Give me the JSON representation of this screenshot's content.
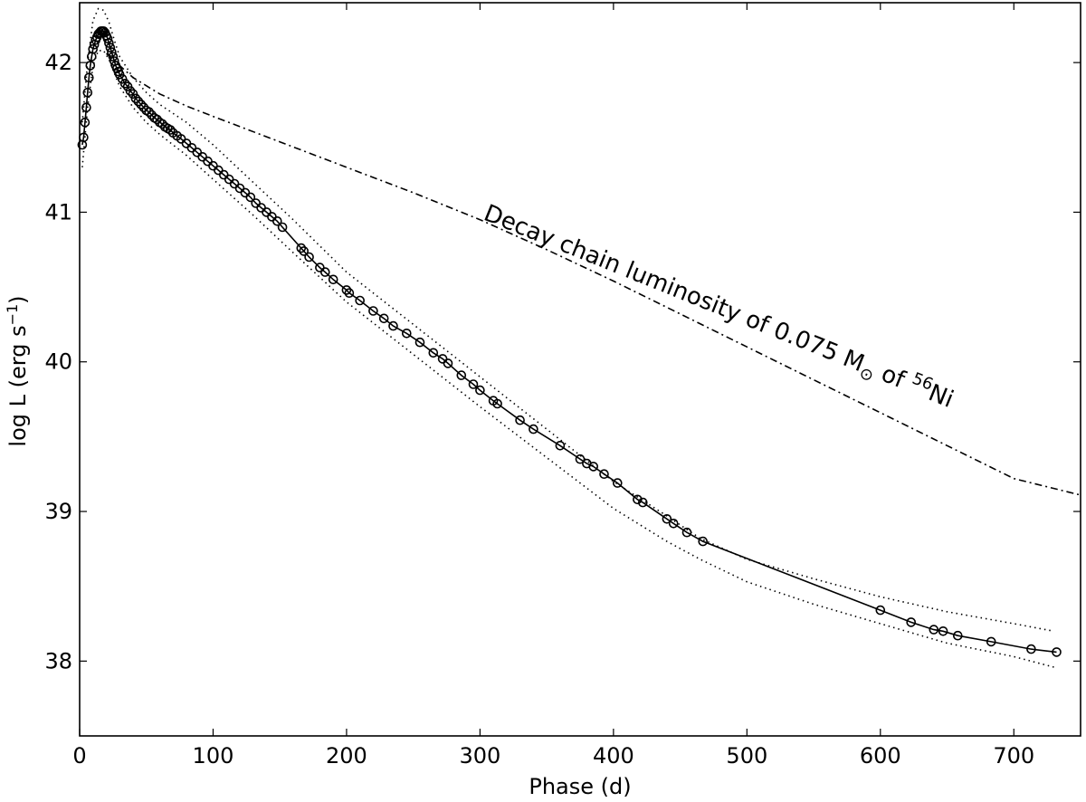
{
  "chart_data": {
    "type": "line",
    "xlabel": "Phase (d)",
    "ylabel_main": "log L (erg s",
    "ylabel_sup": "−1",
    "ylabel_end": ")",
    "xlim": [
      0,
      750
    ],
    "ylim": [
      37.5,
      42.4
    ],
    "xticks": [
      0,
      100,
      200,
      300,
      400,
      500,
      600,
      700
    ],
    "xtick_labels": [
      "0",
      "100",
      "200",
      "300",
      "400",
      "500",
      "600",
      "700"
    ],
    "yticks": [
      38,
      39,
      40,
      41,
      42
    ],
    "ytick_labels": [
      "38",
      "39",
      "40",
      "41",
      "42"
    ],
    "grid": false,
    "annotation": {
      "prefix": "Decay chain luminosity of 0.075 M",
      "sun": "⊙",
      "middle": " of ",
      "sup": "56",
      "suffix": "Ni"
    },
    "series": [
      {
        "style": "line-with-circle-markers",
        "color": "#000000",
        "x": [
          2,
          3,
          4,
          5,
          6,
          7,
          8,
          9,
          10,
          11,
          12,
          13,
          14,
          15,
          16,
          17,
          18,
          19,
          20,
          21,
          22,
          23,
          24,
          25,
          26,
          27,
          28,
          29,
          30,
          32,
          34,
          36,
          38,
          40,
          42,
          44,
          46,
          48,
          50,
          52,
          54,
          56,
          58,
          60,
          62,
          64,
          66,
          68,
          70,
          73,
          76,
          80,
          84,
          88,
          92,
          96,
          100,
          104,
          108,
          112,
          116,
          120,
          124,
          128,
          132,
          136,
          140,
          144,
          148,
          152,
          166,
          168,
          172,
          180,
          184,
          190,
          200,
          202,
          210,
          220,
          228,
          235,
          245,
          255,
          265,
          272,
          276,
          286,
          295,
          300,
          310,
          313,
          330,
          340,
          360,
          375,
          380,
          385,
          393,
          403,
          418,
          422,
          440,
          445,
          455,
          467,
          600,
          623,
          640,
          647,
          658,
          683,
          713,
          732
        ],
        "y": [
          41.45,
          41.5,
          41.6,
          41.7,
          41.8,
          41.9,
          41.98,
          42.04,
          42.09,
          42.12,
          42.15,
          42.17,
          42.19,
          42.2,
          42.21,
          42.21,
          42.21,
          42.2,
          42.18,
          42.16,
          42.13,
          42.1,
          42.07,
          42.04,
          42.01,
          41.98,
          41.96,
          41.94,
          41.92,
          41.89,
          41.86,
          41.84,
          41.81,
          41.79,
          41.76,
          41.74,
          41.72,
          41.7,
          41.68,
          41.67,
          41.65,
          41.63,
          41.62,
          41.6,
          41.59,
          41.57,
          41.56,
          41.55,
          41.53,
          41.51,
          41.49,
          41.46,
          41.43,
          41.4,
          41.37,
          41.34,
          41.31,
          41.28,
          41.25,
          41.22,
          41.19,
          41.16,
          41.13,
          41.1,
          41.06,
          41.03,
          41.0,
          40.97,
          40.94,
          40.9,
          40.76,
          40.74,
          40.7,
          40.63,
          40.6,
          40.55,
          40.48,
          40.46,
          40.41,
          40.34,
          40.29,
          40.24,
          40.19,
          40.13,
          40.06,
          40.02,
          39.99,
          39.91,
          39.85,
          39.81,
          39.74,
          39.72,
          39.61,
          39.55,
          39.44,
          39.35,
          39.32,
          39.3,
          39.25,
          39.19,
          39.08,
          39.06,
          38.95,
          38.92,
          38.86,
          38.8,
          38.34,
          38.26,
          38.21,
          38.2,
          38.17,
          38.13,
          38.08,
          38.06
        ]
      },
      {
        "style": "dotted",
        "color": "#000000",
        "x": [
          2,
          6,
          10,
          14,
          18,
          22,
          26,
          30,
          40,
          50,
          60,
          80,
          100,
          130,
          160,
          200,
          250,
          300,
          350,
          400,
          440,
          465,
          500,
          550,
          600,
          650,
          700,
          730
        ],
        "y": [
          41.6,
          42.0,
          42.28,
          42.36,
          42.35,
          42.27,
          42.15,
          42.04,
          41.9,
          41.8,
          41.72,
          41.6,
          41.45,
          41.2,
          40.95,
          40.6,
          40.25,
          39.9,
          39.55,
          39.2,
          38.97,
          38.82,
          38.68,
          38.55,
          38.43,
          38.33,
          38.25,
          38.2
        ]
      },
      {
        "style": "dotted",
        "color": "#000000",
        "x": [
          2,
          6,
          10,
          14,
          18,
          22,
          26,
          30,
          40,
          50,
          60,
          80,
          100,
          130,
          160,
          200,
          250,
          300,
          350,
          400,
          440,
          465,
          500,
          550,
          600,
          650,
          700,
          730
        ],
        "y": [
          41.3,
          41.7,
          41.98,
          42.08,
          42.08,
          42.02,
          41.93,
          41.84,
          41.7,
          41.6,
          41.52,
          41.38,
          41.22,
          40.98,
          40.73,
          40.4,
          40.05,
          39.7,
          39.36,
          39.02,
          38.8,
          38.68,
          38.53,
          38.38,
          38.25,
          38.12,
          38.03,
          37.96
        ]
      },
      {
        "style": "dash-dot",
        "color": "#000000",
        "x": [
          20,
          40,
          60,
          80,
          100,
          150,
          200,
          250,
          300,
          350,
          400,
          450,
          500,
          550,
          600,
          650,
          700,
          750
        ],
        "y": [
          42.06,
          41.9,
          41.79,
          41.71,
          41.64,
          41.47,
          41.3,
          41.13,
          40.95,
          40.75,
          40.54,
          40.32,
          40.1,
          39.88,
          39.66,
          39.44,
          39.22,
          39.11
        ]
      }
    ]
  }
}
